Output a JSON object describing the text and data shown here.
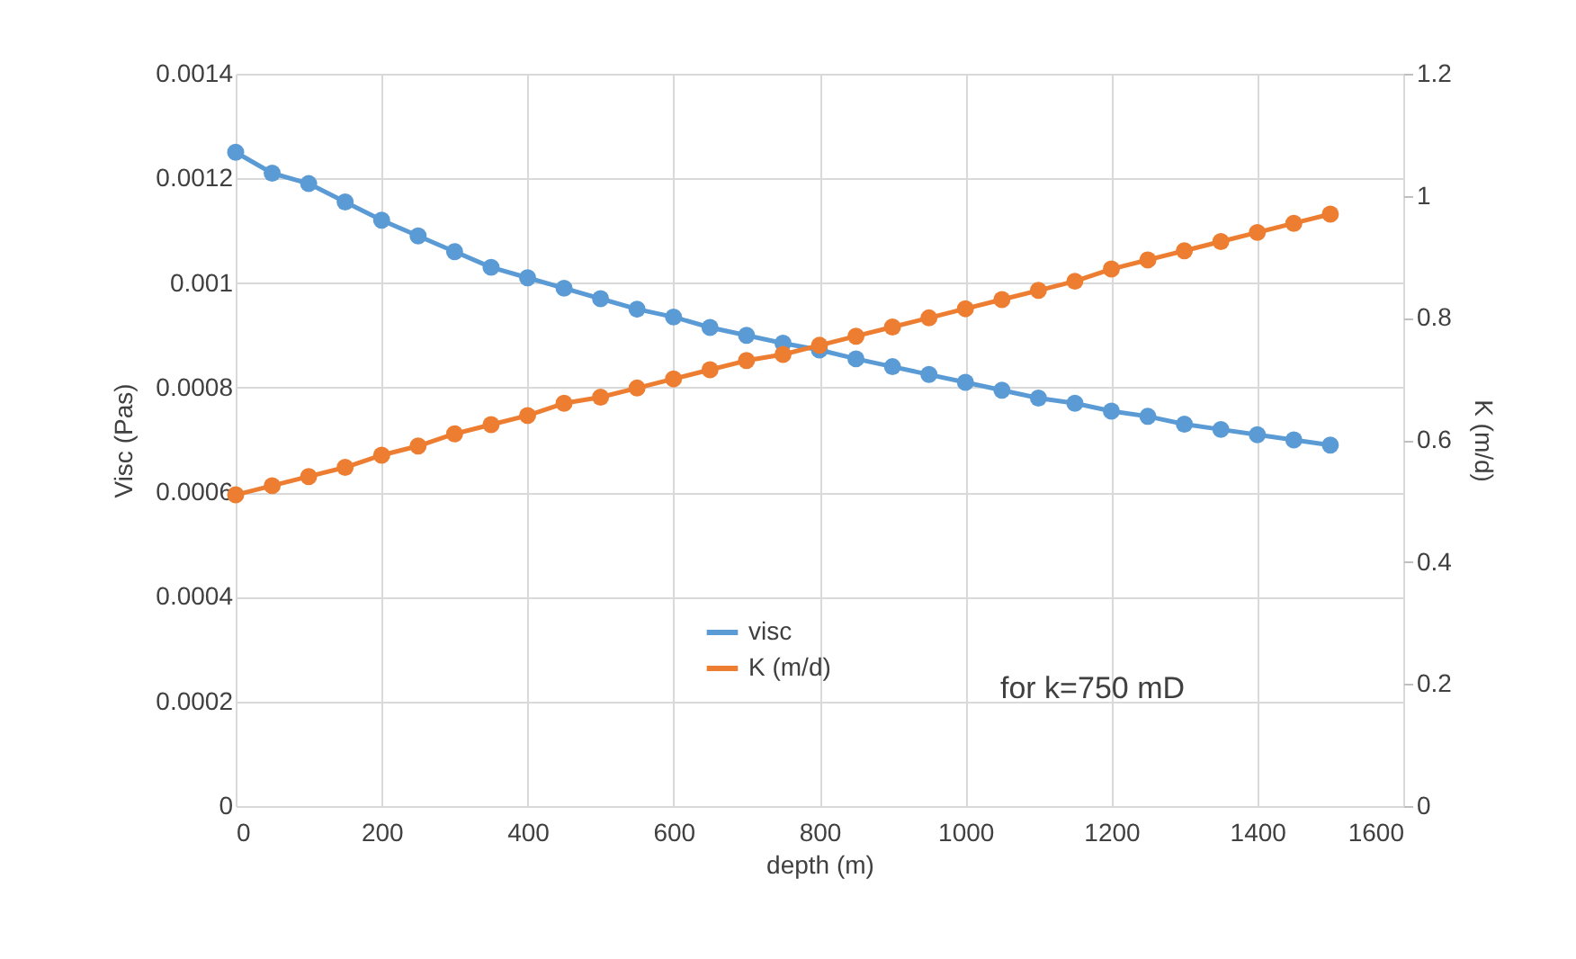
{
  "chart_data": {
    "type": "line",
    "xlabel": "depth (m)",
    "ylabel": "Visc (Pas)",
    "y2label": "K (m/d)",
    "annotations": [
      "for k=750 mD"
    ],
    "x": [
      0,
      50,
      100,
      150,
      200,
      250,
      300,
      350,
      400,
      450,
      500,
      550,
      600,
      650,
      700,
      750,
      800,
      850,
      900,
      950,
      1000,
      1050,
      1100,
      1150,
      1200,
      1250,
      1300,
      1350,
      1400,
      1450,
      1500
    ],
    "series": [
      {
        "name": "visc",
        "color": "#5b9bd5",
        "values": [
          0.00125,
          0.00121,
          0.00119,
          0.001155,
          0.00112,
          0.00109,
          0.00106,
          0.00103,
          0.00101,
          0.00099,
          0.00097,
          0.00095,
          0.000935,
          0.000915,
          0.0009,
          0.000885,
          0.000872,
          0.000855,
          0.00084,
          0.000825,
          0.00081,
          0.000795,
          0.00078,
          0.00077,
          0.000755,
          0.000745,
          0.00073,
          0.00072,
          0.00071,
          0.0007,
          0.00069
        ]
      },
      {
        "name": "K (m/d)",
        "color": "#ed7d31",
        "axis": "y2",
        "values": [
          0.51,
          0.525,
          0.54,
          0.555,
          0.575,
          0.59,
          0.61,
          0.625,
          0.64,
          0.66,
          0.67,
          0.685,
          0.7,
          0.715,
          0.73,
          0.74,
          0.755,
          0.77,
          0.785,
          0.8,
          0.815,
          0.83,
          0.845,
          0.86,
          0.88,
          0.895,
          0.91,
          0.925,
          0.94,
          0.955,
          0.97
        ]
      }
    ],
    "xlim": [
      0,
      1600
    ],
    "xticks": [
      0,
      200,
      400,
      600,
      800,
      1000,
      1200,
      1400,
      1600
    ],
    "ylim": [
      0,
      0.0014
    ],
    "yticks": [
      0,
      0.0002,
      0.0004,
      0.0006,
      0.0008,
      0.001,
      0.0012,
      0.0014
    ],
    "y2lim": [
      0,
      1.2
    ],
    "y2ticks": [
      0,
      0.2,
      0.4,
      0.6,
      0.8,
      1,
      1.2
    ],
    "grid": true,
    "legend": "bottom",
    "marker": "circle",
    "line_style": "solid"
  }
}
